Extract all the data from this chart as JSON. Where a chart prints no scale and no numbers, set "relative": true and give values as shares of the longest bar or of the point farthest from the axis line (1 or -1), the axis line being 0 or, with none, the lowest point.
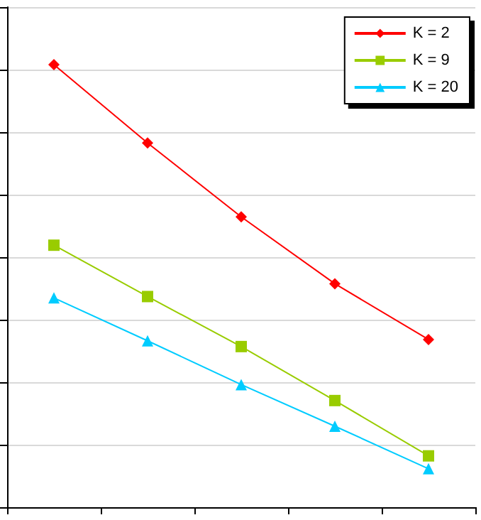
{
  "chart_data": {
    "type": "line",
    "relative": true,
    "categories": [
      null,
      null,
      null,
      null,
      null
    ],
    "series": [
      {
        "name": "K = 2",
        "color": "#ff0000",
        "marker": "diamond",
        "values": [
          1,
          0.823,
          0.656,
          0.505,
          0.379
        ]
      },
      {
        "name": "K = 9",
        "color": "#99cc00",
        "marker": "square",
        "values": [
          0.592,
          0.476,
          0.363,
          0.241,
          0.116
        ]
      },
      {
        "name": "K = 20",
        "color": "#00ccff",
        "marker": "triangle",
        "values": [
          0.473,
          0.376,
          0.277,
          0.183,
          0.087
        ]
      }
    ],
    "grid": "y",
    "legend": "top right"
  }
}
